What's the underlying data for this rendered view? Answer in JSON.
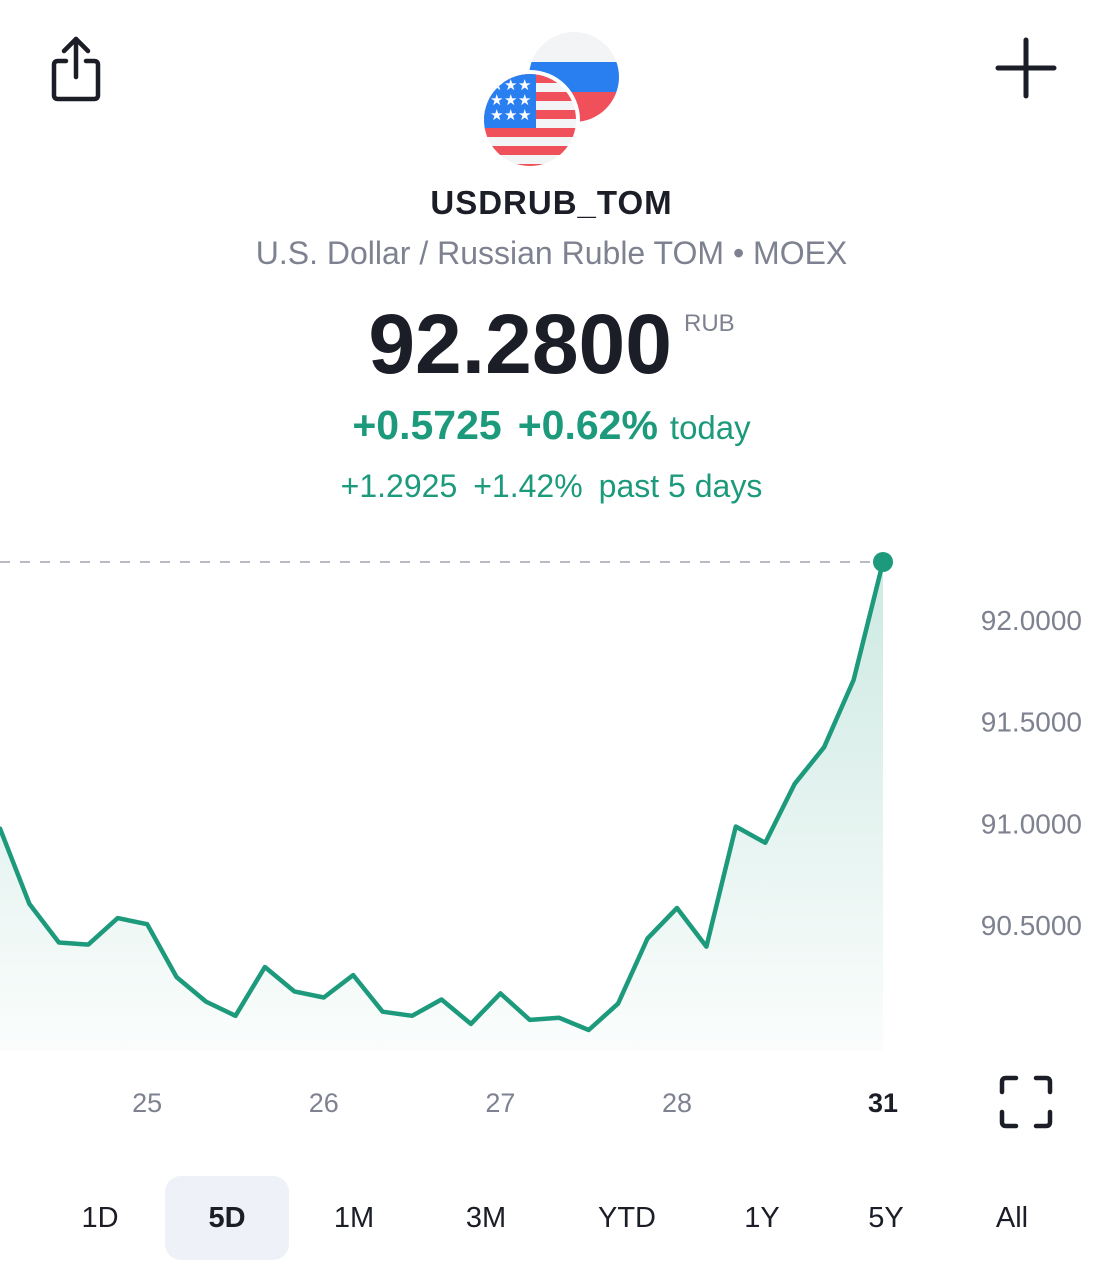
{
  "header": {
    "share_icon": "share-icon",
    "add_icon": "plus-icon",
    "flags": [
      "us-flag-icon",
      "russia-flag-icon"
    ]
  },
  "instrument": {
    "symbol": "USDRUB_TOM",
    "description": "U.S. Dollar / Russian Ruble TOM • MOEX",
    "price": "92.2800",
    "currency": "RUB"
  },
  "change": {
    "today_abs": "+0.5725",
    "today_pct": "+0.62%",
    "today_label": "today",
    "period_abs": "+1.2925",
    "period_pct": "+1.42%",
    "period_label": "past 5 days"
  },
  "colors": {
    "positive": "#1d9a7c",
    "text_primary": "#1b1d27",
    "text_secondary": "#7e8290"
  },
  "chart_data": {
    "type": "area",
    "x_tick_labels": [
      "25",
      "26",
      "27",
      "28",
      "31"
    ],
    "x_active_tick": "31",
    "y_tick_labels": [
      "92.0000",
      "91.5000",
      "91.0000",
      "90.5000"
    ],
    "y_ticks": [
      92.0,
      91.5,
      91.0,
      90.5
    ],
    "ylim": [
      89.8,
      92.3
    ],
    "reference_line": 92.28,
    "x": [
      0,
      1,
      2,
      3,
      4,
      5,
      6,
      7,
      8,
      9,
      10,
      11,
      12,
      13,
      14,
      15,
      16,
      17,
      18,
      19,
      20,
      21,
      22,
      23,
      24,
      25,
      26,
      27,
      28,
      29,
      30
    ],
    "values": [
      90.97,
      90.6,
      90.41,
      90.4,
      90.53,
      90.5,
      90.24,
      90.12,
      90.05,
      90.29,
      90.17,
      90.14,
      90.25,
      90.07,
      90.05,
      90.13,
      90.01,
      90.16,
      90.03,
      90.04,
      89.98,
      90.11,
      90.43,
      90.58,
      90.39,
      90.98,
      90.9,
      91.19,
      91.37,
      91.7,
      92.28
    ],
    "x_tick_positions": [
      5,
      11,
      17,
      23,
      30
    ],
    "grid": false,
    "legend": "none"
  },
  "fullscreen_icon": "fullscreen-icon",
  "ranges": [
    {
      "label": "1D",
      "active": false
    },
    {
      "label": "5D",
      "active": true
    },
    {
      "label": "1M",
      "active": false
    },
    {
      "label": "3M",
      "active": false
    },
    {
      "label": "YTD",
      "active": false
    },
    {
      "label": "1Y",
      "active": false
    },
    {
      "label": "5Y",
      "active": false
    },
    {
      "label": "All",
      "active": false
    }
  ]
}
